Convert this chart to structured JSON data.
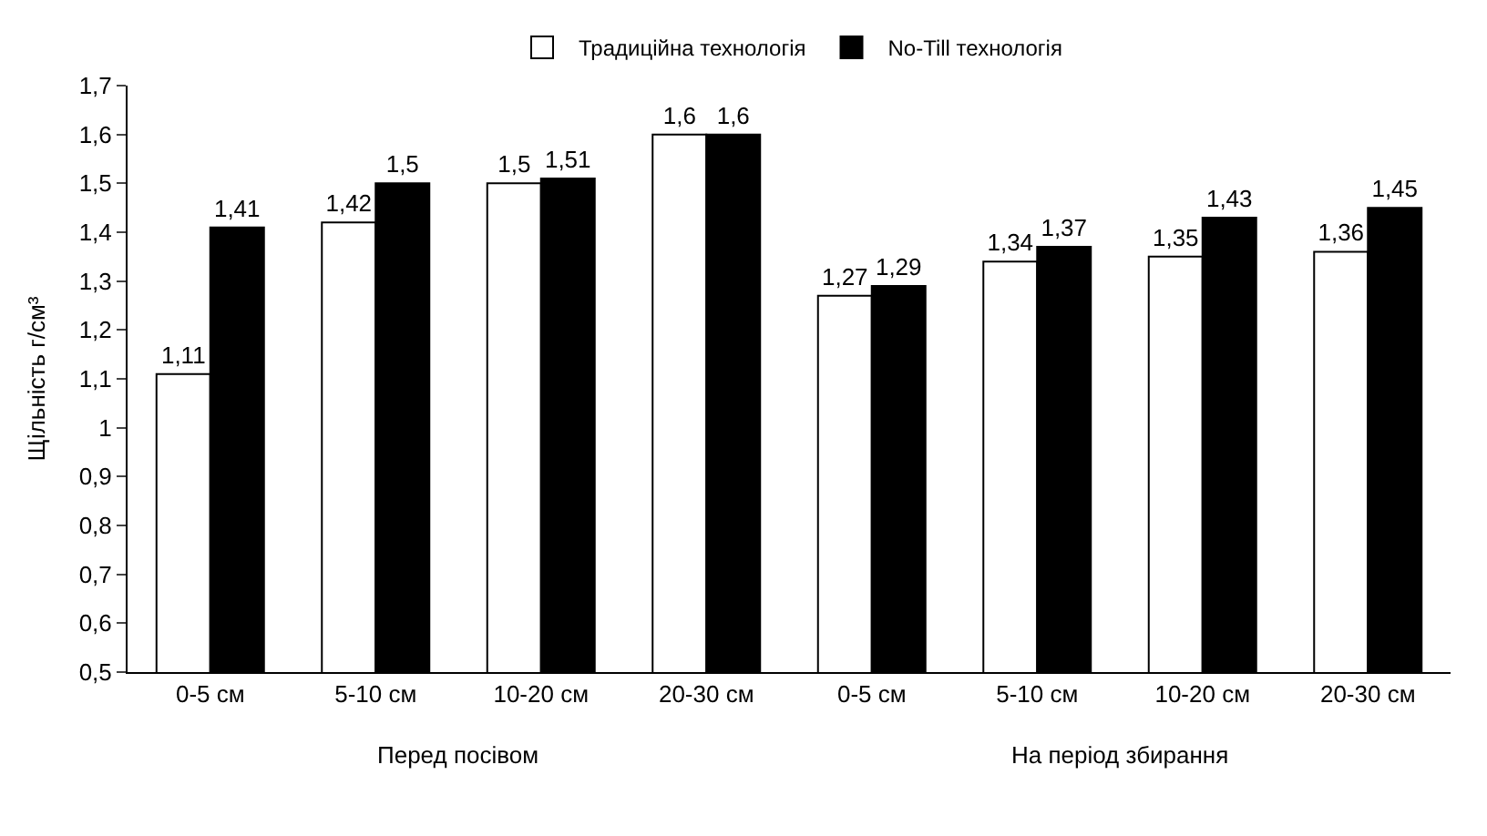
{
  "chart_data": {
    "type": "bar",
    "categories": [
      "0-5 см",
      "5-10 см",
      "10-20 см",
      "20-30 см",
      "0-5 см",
      "5-10 см",
      "10-20 см",
      "20-30 см"
    ],
    "series": [
      {
        "name": "Традиційна технологія",
        "color": "#ffffff",
        "values": [
          1.11,
          1.42,
          1.5,
          1.6,
          1.27,
          1.34,
          1.35,
          1.36
        ],
        "value_labels": [
          "1,11",
          "1,42",
          "1,5",
          "1,6",
          "1,27",
          "1,34",
          "1,35",
          "1,36"
        ]
      },
      {
        "name": "No-Till технологія",
        "color": "#000000",
        "values": [
          1.41,
          1.5,
          1.51,
          1.6,
          1.29,
          1.37,
          1.43,
          1.45
        ],
        "value_labels": [
          "1,41",
          "1,5",
          "1,51",
          "1,6",
          "1,29",
          "1,37",
          "1,43",
          "1,45"
        ]
      }
    ],
    "ylabel": "Щільність г/см³",
    "ylim": [
      0.5,
      1.7
    ],
    "yticks": [
      {
        "value": 0.5,
        "label": "0,5"
      },
      {
        "value": 0.6,
        "label": "0,6"
      },
      {
        "value": 0.7,
        "label": "0,7"
      },
      {
        "value": 0.8,
        "label": "0,8"
      },
      {
        "value": 0.9,
        "label": "0,9"
      },
      1,
      {
        "value": 1.1,
        "label": "1,1"
      },
      {
        "value": 1.2,
        "label": "1,2"
      },
      {
        "value": 1.3,
        "label": "1,3"
      },
      {
        "value": 1.4,
        "label": "1,4"
      },
      {
        "value": 1.5,
        "label": "1,5"
      },
      {
        "value": 1.6,
        "label": "1,6"
      },
      {
        "value": 1.7,
        "label": "1,7"
      }
    ],
    "annotations": [
      "Перед посівом",
      "На період збирання"
    ],
    "legend": "top",
    "grid": false
  }
}
